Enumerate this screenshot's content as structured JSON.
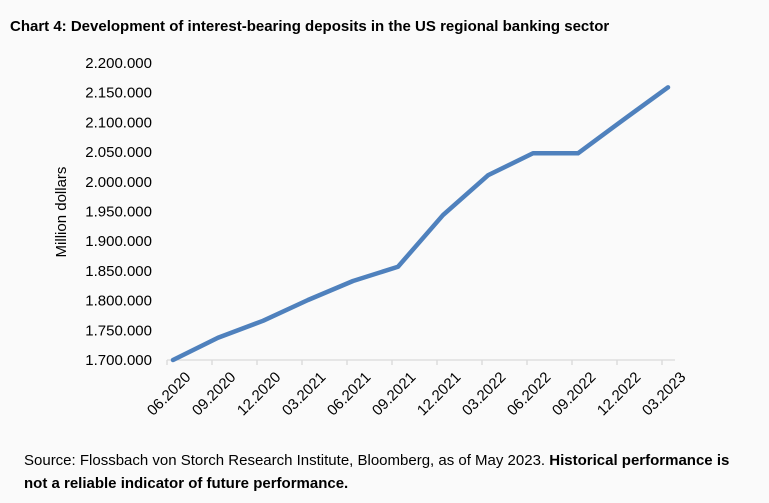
{
  "chart_data": {
    "type": "line",
    "title": "Chart 4: Development of interest-bearing deposits in the US regional banking sector",
    "xlabel": "",
    "ylabel": "Million dollars",
    "ylim": [
      1700000,
      2200000
    ],
    "yticks": [
      "1.700.000",
      "1.750.000",
      "1.800.000",
      "1.850.000",
      "1.900.000",
      "1.950.000",
      "2.000.000",
      "2.050.000",
      "2.100.000",
      "2.150.000",
      "2.200.000"
    ],
    "categories": [
      "06.2020",
      "09.2020",
      "12.2020",
      "03.2021",
      "06.2021",
      "09.2021",
      "12.2021",
      "03.2022",
      "06.2022",
      "09.2022",
      "12.2022",
      "03.2023"
    ],
    "values": [
      1700000,
      1737500,
      1766000,
      1801000,
      1833000,
      1857000,
      1944000,
      2011000,
      2048000,
      2048000,
      2104000,
      2159000
    ],
    "grid": false,
    "legend": "none",
    "line_color": "#4f81bd"
  },
  "source": {
    "text": "Source: Flossbach von Storch Research Institute, Bloomberg, as of May 2023. ",
    "bold": "Historical performance is not a reliable indicator of future performance."
  }
}
